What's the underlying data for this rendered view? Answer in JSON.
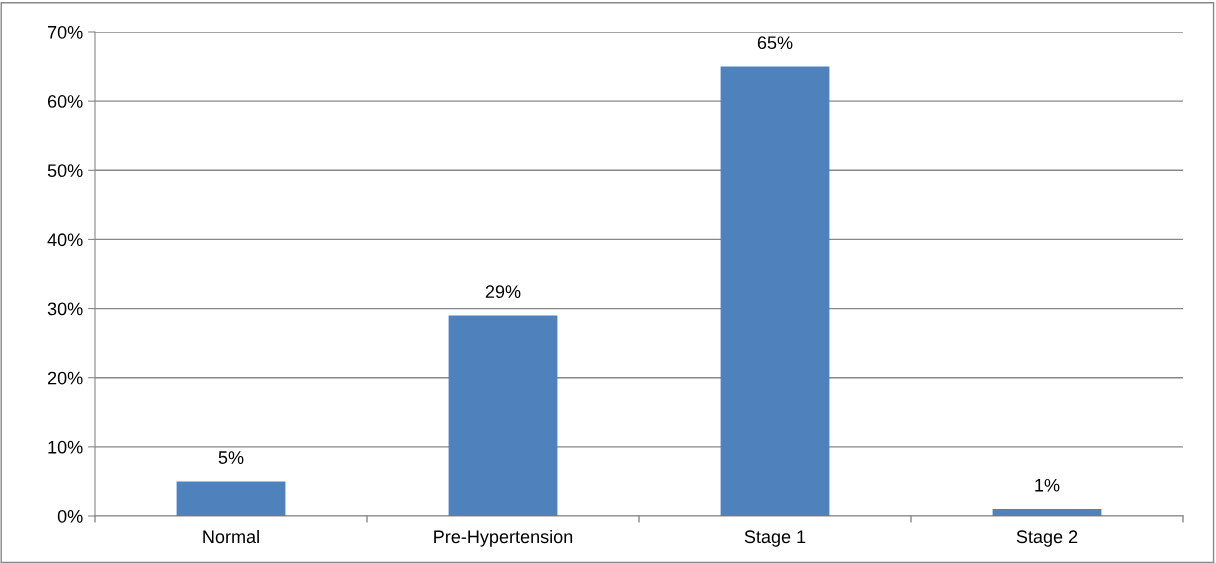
{
  "chart_data": {
    "type": "bar",
    "categories": [
      "Normal",
      "Pre-Hypertension",
      "Stage 1",
      "Stage 2"
    ],
    "values": [
      5,
      29,
      65,
      1
    ],
    "color": "#4f81bd",
    "value_labels": [
      "5%",
      "29%",
      "65%",
      "1%"
    ],
    "ylim": [
      0,
      70
    ],
    "yticks": [
      {
        "value": 0,
        "label": "0%"
      },
      {
        "value": 10,
        "label": "10%"
      },
      {
        "value": 20,
        "label": "20%"
      },
      {
        "value": 30,
        "label": "30%"
      },
      {
        "value": 40,
        "label": "40%"
      },
      {
        "value": 50,
        "label": "50%"
      },
      {
        "value": 60,
        "label": "60%"
      },
      {
        "value": 70,
        "label": "70%"
      }
    ],
    "grid": "y",
    "legend": false
  }
}
